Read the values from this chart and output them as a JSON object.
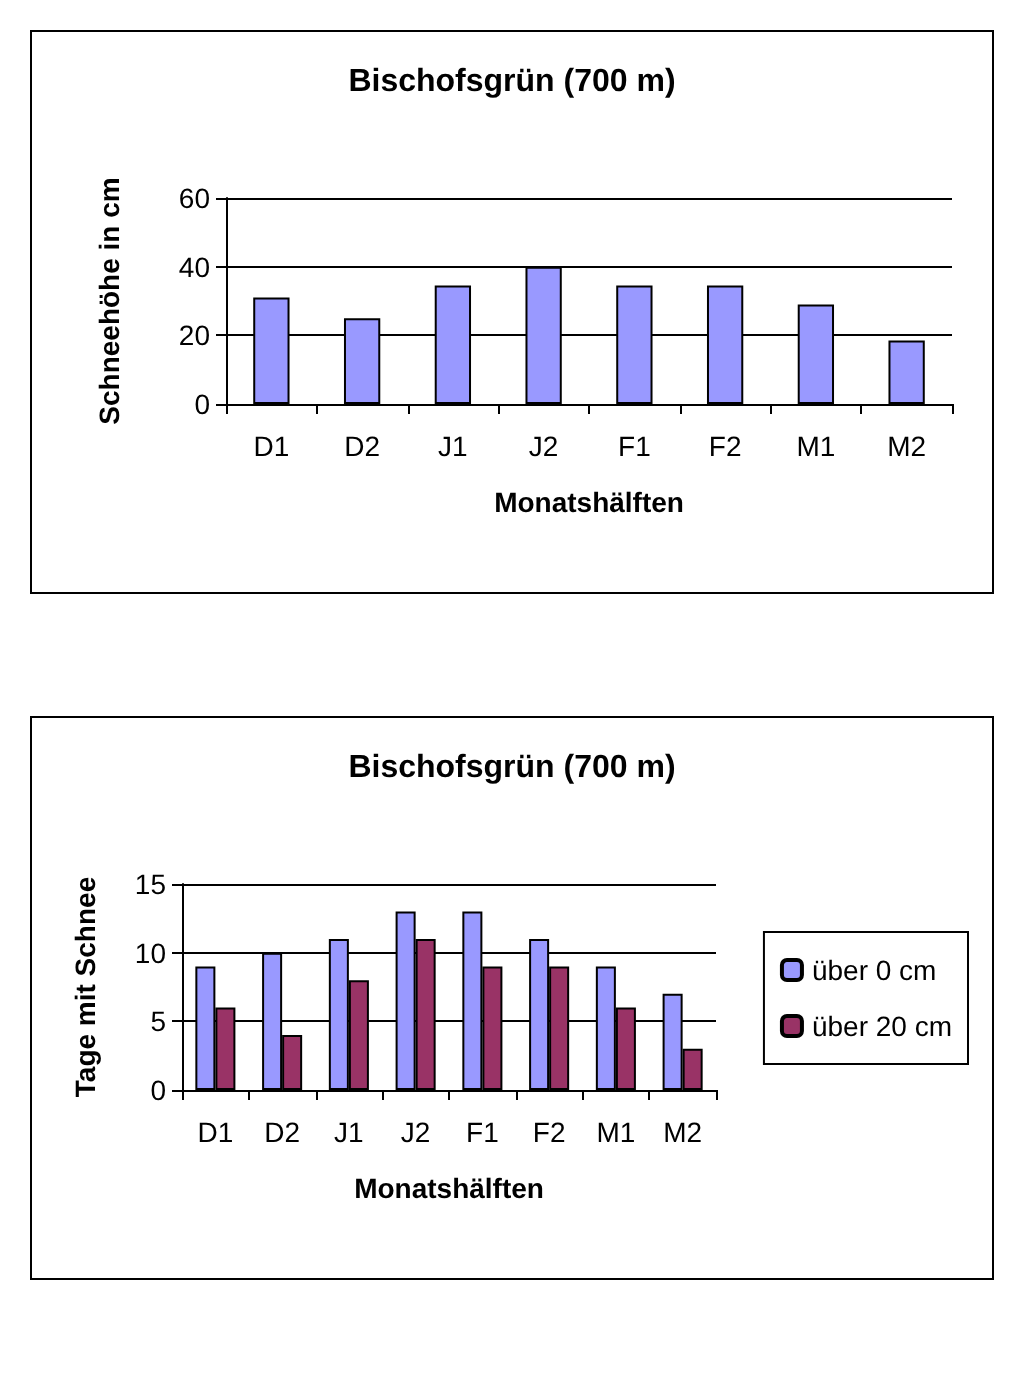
{
  "chart_data": [
    {
      "type": "bar",
      "title": "Bischofsgrün (700 m)",
      "xlabel": "Monatshälften",
      "ylabel": "Schneehöhe in cm",
      "categories": [
        "D1",
        "D2",
        "J1",
        "J2",
        "F1",
        "F2",
        "M1",
        "M2"
      ],
      "values": [
        31,
        25,
        34.5,
        40,
        34.5,
        34.5,
        29,
        18.5
      ],
      "color": "#9999ff",
      "ylim": [
        0,
        60
      ],
      "yticks": [
        0,
        20,
        40,
        60
      ],
      "grid": "y",
      "legend": false
    },
    {
      "type": "bar",
      "title": "Bischofsgrün (700 m)",
      "xlabel": "Monatshälften",
      "ylabel": "Tage mit Schnee",
      "categories": [
        "D1",
        "D2",
        "J1",
        "J2",
        "F1",
        "F2",
        "M1",
        "M2"
      ],
      "series": [
        {
          "name": "über 0 cm",
          "color": "#9999ff",
          "values": [
            9,
            10,
            11,
            13,
            13,
            11,
            9,
            7
          ]
        },
        {
          "name": "über 20 cm",
          "color": "#993366",
          "values": [
            6,
            4,
            8,
            11,
            9,
            9,
            6,
            3
          ]
        }
      ],
      "ylim": [
        0,
        15
      ],
      "yticks": [
        0,
        5,
        10,
        15
      ],
      "grid": "y",
      "legend": "right"
    }
  ]
}
